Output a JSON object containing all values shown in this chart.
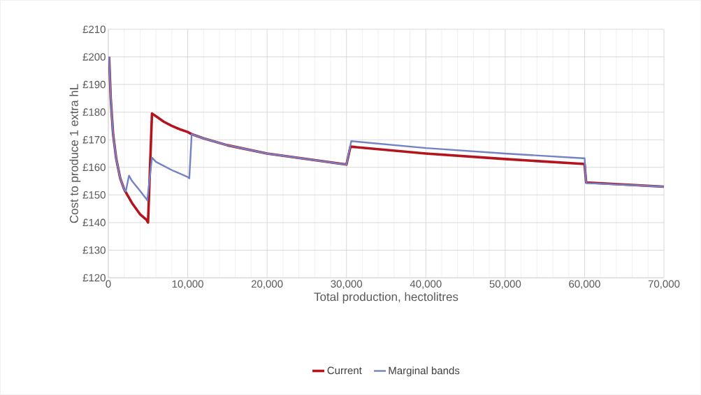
{
  "chart_data": {
    "type": "line",
    "xlabel": "Total production, hectolitres",
    "ylabel": "Cost to produce 1 extra hL",
    "xlim": [
      0,
      70000
    ],
    "ylim": [
      120,
      210
    ],
    "xticks": [
      {
        "value": 0,
        "label": "0"
      },
      {
        "value": 10000,
        "label": "10,000"
      },
      {
        "value": 20000,
        "label": "20,000"
      },
      {
        "value": 30000,
        "label": "30,000"
      },
      {
        "value": 40000,
        "label": "40,000"
      },
      {
        "value": 50000,
        "label": "50,000"
      },
      {
        "value": 60000,
        "label": "60,000"
      },
      {
        "value": 70000,
        "label": "70,000"
      }
    ],
    "yticks": [
      {
        "value": 120,
        "label": "£120"
      },
      {
        "value": 130,
        "label": "£130"
      },
      {
        "value": 140,
        "label": "£140"
      },
      {
        "value": 150,
        "label": "£150"
      },
      {
        "value": 160,
        "label": "£160"
      },
      {
        "value": 170,
        "label": "£170"
      },
      {
        "value": 180,
        "label": "£180"
      },
      {
        "value": 190,
        "label": "£190"
      },
      {
        "value": 200,
        "label": "£200"
      },
      {
        "value": 210,
        "label": "£210"
      }
    ],
    "grid": true,
    "legend": "bottom",
    "marker": "none",
    "line_style": "solid",
    "series": [
      {
        "name": "Current",
        "color": "#b2151e",
        "x": [
          100,
          300,
          600,
          1000,
          1500,
          2000,
          2500,
          3000,
          4000,
          4800,
          5000,
          5500,
          6000,
          7000,
          8000,
          9000,
          10000,
          10500,
          12000,
          15000,
          20000,
          25000,
          30000,
          30500,
          40000,
          50000,
          60000,
          60200,
          70000
        ],
        "values": [
          200,
          185,
          172,
          163,
          156,
          152,
          149.5,
          147,
          143,
          141,
          140,
          179.5,
          178.5,
          176.5,
          175,
          173.8,
          172.8,
          172,
          170.5,
          168,
          165,
          163,
          161,
          167.5,
          165,
          163,
          161.2,
          154.5,
          153
        ]
      },
      {
        "name": "Marginal bands",
        "color": "#7282c4",
        "x": [
          100,
          300,
          600,
          1000,
          1500,
          2000,
          2200,
          2600,
          3000,
          4000,
          4800,
          4900,
          5500,
          6000,
          8000,
          10000,
          10200,
          10500,
          12000,
          15000,
          20000,
          25000,
          30000,
          30600,
          40000,
          50000,
          59800,
          60000,
          60200,
          70000
        ],
        "values": [
          200,
          185,
          172,
          163,
          156,
          152,
          151.3,
          157,
          155,
          151.5,
          148.5,
          148,
          163.5,
          162,
          159,
          156.5,
          156,
          172,
          170.5,
          168,
          165,
          163,
          161,
          169.5,
          167,
          165,
          163.3,
          163.3,
          154.3,
          153
        ]
      }
    ]
  }
}
